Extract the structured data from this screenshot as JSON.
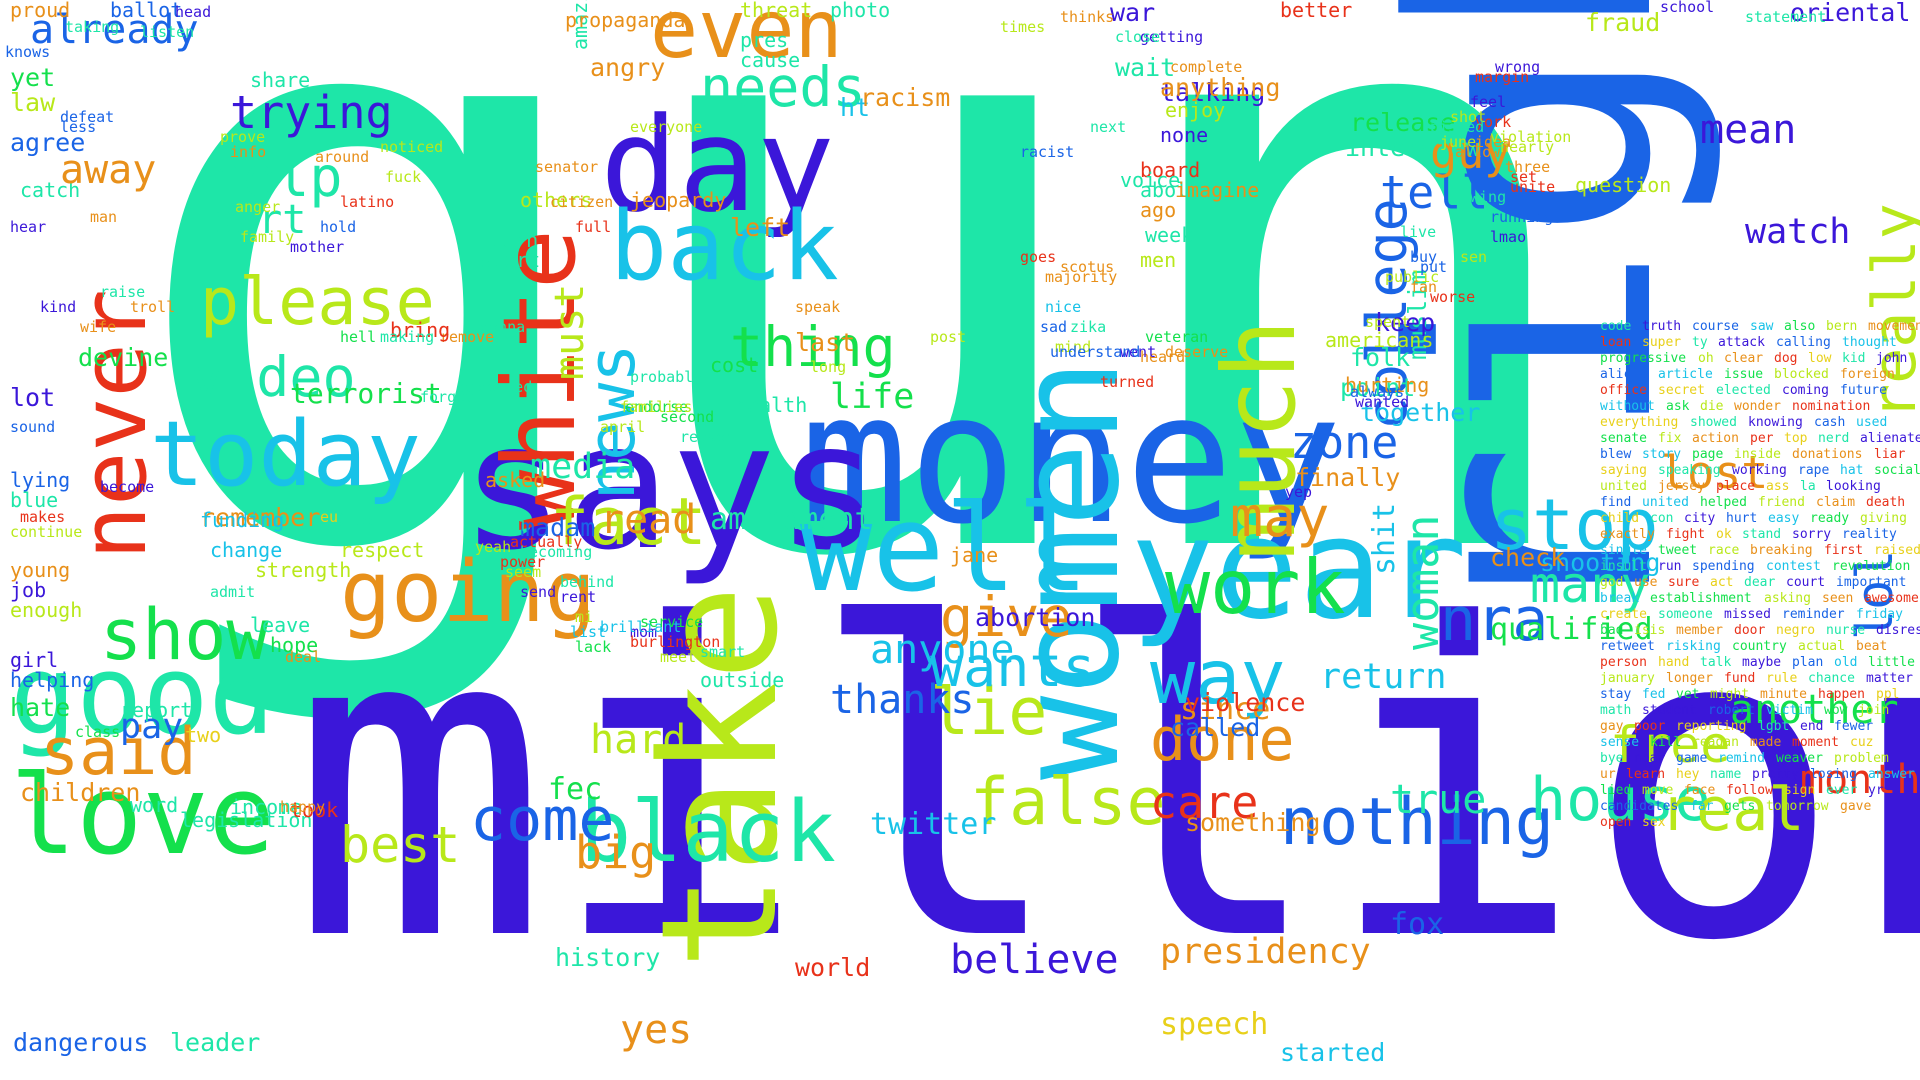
{
  "colors": {
    "teal": "#1ee6a8",
    "indigo": "#3b17d9",
    "blue": "#1a64e6",
    "sky": "#18c2e8",
    "green": "#14e04c",
    "lime": "#b8e81a",
    "orange": "#e8901a",
    "red": "#e8321a",
    "yellow": "#e8d01a"
  },
  "words": [
    "gun",
    "million",
    "right",
    "money",
    "says",
    "take",
    "women",
    "year",
    "day",
    "well",
    "good",
    "love",
    "white",
    "going",
    "black",
    "much",
    "back",
    "today",
    "never",
    "news",
    "please",
    "even",
    "said",
    "show",
    "way",
    "work",
    "stop",
    "lie",
    "nothing",
    "fact",
    "false",
    "come",
    "give",
    "done",
    "college",
    "house",
    "needs",
    "wants",
    "real",
    "nra",
    "may",
    "woman",
    "video",
    "help",
    "best",
    "thing",
    "trying",
    "free",
    "many",
    "lost",
    "zone",
    "care",
    "believe",
    "another",
    "media",
    "really",
    "lol",
    "tell",
    "guy",
    "mean",
    "watch",
    "big",
    "pay",
    "read",
    "yes",
    "month",
    "true",
    "return",
    "must",
    "thanks",
    "anyone",
    "life",
    "hard",
    "presidency",
    "fox",
    "twitter",
    "amendment",
    "abortion",
    "speech",
    "fec",
    "since",
    "violence",
    "qualified",
    "something",
    "terrorist",
    "started",
    "history",
    "dangerous",
    "leader",
    "called",
    "world",
    "shooting",
    "check",
    "shit",
    "muslim",
    "keep",
    "release",
    "interview",
    "point",
    "together",
    "war",
    "wait",
    "talking",
    "anything",
    "ht",
    "left",
    "racism",
    "angry",
    "amazing",
    "propaganda",
    "photo",
    "threat",
    "pres",
    "cause",
    "better",
    "fraud",
    "oriental",
    "statement",
    "school",
    "agree",
    "law",
    "yet",
    "already",
    "proud",
    "ballot",
    "head",
    "knows",
    "listen",
    "taking",
    "defeat",
    "less",
    "catch",
    "hear",
    "man",
    "away",
    "part",
    "noticed",
    "anger",
    "fuck",
    "latino",
    "around",
    "share",
    "prove",
    "info",
    "hold",
    "mother",
    "family",
    "turn",
    "others",
    "citizen",
    "senator",
    "jeopardy",
    "everyone",
    "full",
    "start",
    "raise",
    "kind",
    "troll",
    "wife",
    "hell",
    "gonna",
    "remove",
    "bring",
    "making",
    "endorsed",
    "endorse",
    "probably",
    "forget",
    "sound",
    "devine",
    "lot",
    "lying",
    "blue",
    "become",
    "makes",
    "continue",
    "young",
    "job",
    "enough",
    "girl",
    "helping",
    "hate",
    "report",
    "two",
    "class",
    "children",
    "word",
    "income",
    "legislation",
    "took",
    "happy",
    "remember",
    "funding",
    "change",
    "admit",
    "strength",
    "leave",
    "hope",
    "deal",
    "respect",
    "pls",
    "eu",
    "yeah",
    "power",
    "jane",
    "asked",
    "madam",
    "actually",
    "tl",
    "becoming",
    "send",
    "seem",
    "mi",
    "behind",
    "mom",
    "rent",
    "list",
    "meet",
    "outside",
    "brilliant",
    "service",
    "burlington",
    "smart",
    "lack",
    "april",
    "families",
    "second",
    "reason",
    "health",
    "cost",
    "last",
    "speak",
    "long",
    "post",
    "turned",
    "veteran",
    "deserve",
    "heard",
    "went",
    "men",
    "week",
    "abolish",
    "ago",
    "imagine",
    "board",
    "voice",
    "none",
    "enjoy",
    "complete",
    "getting",
    "close",
    "thinks",
    "times",
    "next",
    "racist",
    "goes",
    "majority",
    "scotus",
    "nice",
    "sad",
    "zika",
    "mind",
    "understand",
    "finally",
    "yep",
    "folk",
    "hurting",
    "wanted",
    "always",
    "americans",
    "spent",
    "public",
    "live",
    "buy",
    "put",
    "fan",
    "worse",
    "sen",
    "lmao",
    "running",
    "wing",
    "nearly",
    "three",
    "set",
    "unite",
    "question",
    "york",
    "idea",
    "shot",
    "allow",
    "june",
    "pissed",
    "margin",
    "feel",
    "wrong",
    "violation",
    "code",
    "truth",
    "course",
    "saw",
    "also",
    "bern",
    "movement",
    "loan",
    "super",
    "ty",
    "attack",
    "calling",
    "thought",
    "progressive",
    "oh",
    "clear",
    "dog",
    "low",
    "kid",
    "john",
    "alicia",
    "article",
    "issue",
    "blocked",
    "foreign",
    "office",
    "secret",
    "elected",
    "coming",
    "future",
    "without",
    "ask",
    "die",
    "wonder",
    "nomination",
    "everything",
    "showed",
    "knowing",
    "cash",
    "used",
    "senate",
    "fix",
    "action",
    "per",
    "top",
    "nerd",
    "alienate",
    "blew",
    "story",
    "page",
    "inside",
    "donations",
    "liar",
    "saying",
    "speaking",
    "working",
    "rape",
    "hat",
    "socialist",
    "united",
    "jersey",
    "place",
    "ass",
    "la",
    "looking",
    "find",
    "united",
    "helped",
    "friend",
    "claim",
    "death",
    "child",
    "con",
    "city",
    "hurt",
    "easy",
    "ready",
    "giving",
    "exactly",
    "fight",
    "ok",
    "stand",
    "sorry",
    "reality",
    "single",
    "tweet",
    "race",
    "breaking",
    "first",
    "raised",
    "insult",
    "run",
    "spending",
    "contest",
    "revolution",
    "god",
    "use",
    "sure",
    "act",
    "dear",
    "court",
    "important",
    "break",
    "establishment",
    "asking",
    "seen",
    "awesome",
    "create",
    "someone",
    "missed",
    "reminder",
    "friday",
    "bad",
    "isis",
    "member",
    "door",
    "negro",
    "nurse",
    "disrespect",
    "retweet",
    "risking",
    "country",
    "actual",
    "beat",
    "person",
    "hand",
    "talk",
    "maybe",
    "plan",
    "old",
    "little",
    "january",
    "longer",
    "fund",
    "rule",
    "chance",
    "matter",
    "stay",
    "fed",
    "vet",
    "might",
    "minute",
    "happen",
    "ppl",
    "math",
    "student",
    "robert",
    "victim",
    "wow",
    "join",
    "gay",
    "poor",
    "reporting",
    "lgbt",
    "end",
    "fewer",
    "sense",
    "kill",
    "reagan",
    "made",
    "moment",
    "cuz",
    "bye",
    "near",
    "game",
    "remind",
    "weaver",
    "problem",
    "ur",
    "learn",
    "hey",
    "name",
    "pretty",
    "losing",
    "answer",
    "lied",
    "move",
    "face",
    "follow",
    "sign",
    "ever",
    "yr",
    "candidates",
    "far",
    "gets",
    "tomorrow",
    "gave",
    "open",
    "sex"
  ]
}
